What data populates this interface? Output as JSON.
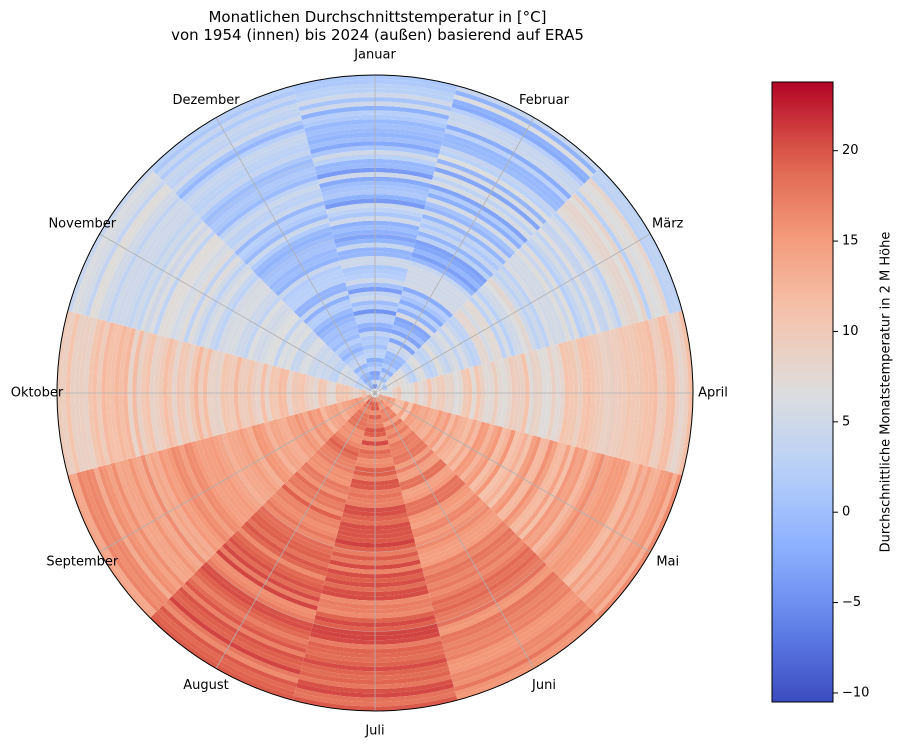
{
  "chart_data": {
    "type": "heatmap",
    "subtype": "polar",
    "title_line1": "Monatlichen Durchschnittstemperatur in [°C]",
    "title_line2": "von 1954 (innen) bis 2024 (außen) basierend auf ERA5",
    "months": [
      "Januar",
      "Februar",
      "März",
      "April",
      "Mai",
      "Juni",
      "Juli",
      "August",
      "September",
      "Oktober",
      "November",
      "Dezember"
    ],
    "year_range": [
      1954,
      2024
    ],
    "colormap": "coolwarm",
    "colorbar": {
      "label": "Durchschnittliche Monatstemperatur in 2 M Höhe",
      "min": -10.5,
      "max": 23.8,
      "ticks": [
        -10,
        -5,
        0,
        5,
        10,
        15,
        20
      ]
    },
    "monthly_mean": [
      0.5,
      1.5,
      5.0,
      9.0,
      13.5,
      16.5,
      18.5,
      18.0,
      14.5,
      10.0,
      5.0,
      1.5
    ],
    "monthly_range": [
      [
        -10,
        5
      ],
      [
        -7,
        7
      ],
      [
        0,
        9
      ],
      [
        6,
        12
      ],
      [
        10,
        17
      ],
      [
        14,
        20
      ],
      [
        16,
        23.5
      ],
      [
        15,
        22
      ],
      [
        12,
        17
      ],
      [
        7,
        13
      ],
      [
        2,
        8
      ],
      [
        -4,
        5
      ]
    ],
    "grid": true
  }
}
